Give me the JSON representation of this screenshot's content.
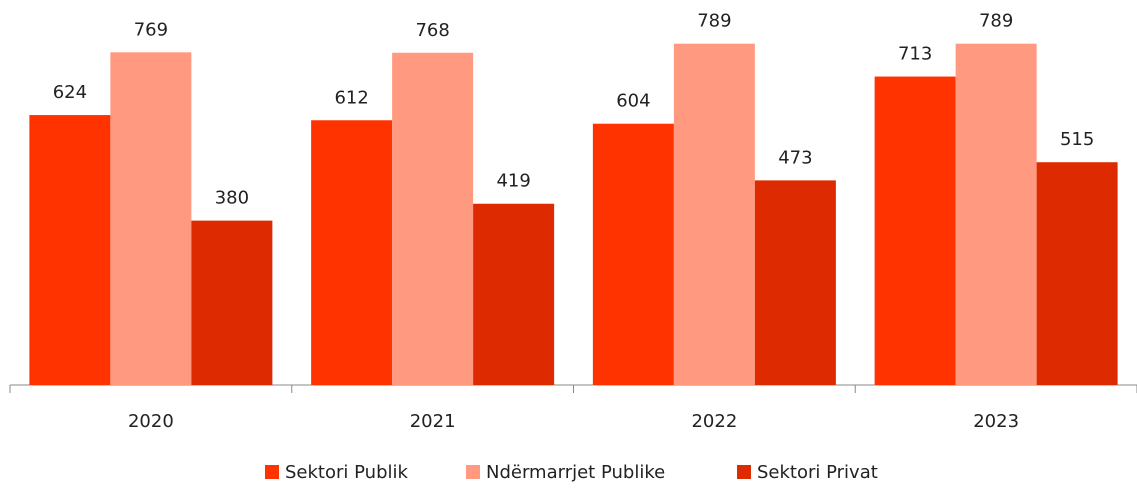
{
  "chart_data": {
    "type": "bar",
    "categories": [
      "2020",
      "2021",
      "2022",
      "2023"
    ],
    "series": [
      {
        "name": "Sektori Publik",
        "color": "#ff3300",
        "values": [
          624,
          612,
          604,
          713
        ]
      },
      {
        "name": "Ndërmarrjet Publike",
        "color": "#ff9980",
        "values": [
          769,
          768,
          789,
          789
        ]
      },
      {
        "name": "Sektori Privat",
        "color": "#dd2a00",
        "values": [
          380,
          419,
          473,
          515
        ]
      }
    ],
    "ylim": [
      0,
      890
    ]
  }
}
